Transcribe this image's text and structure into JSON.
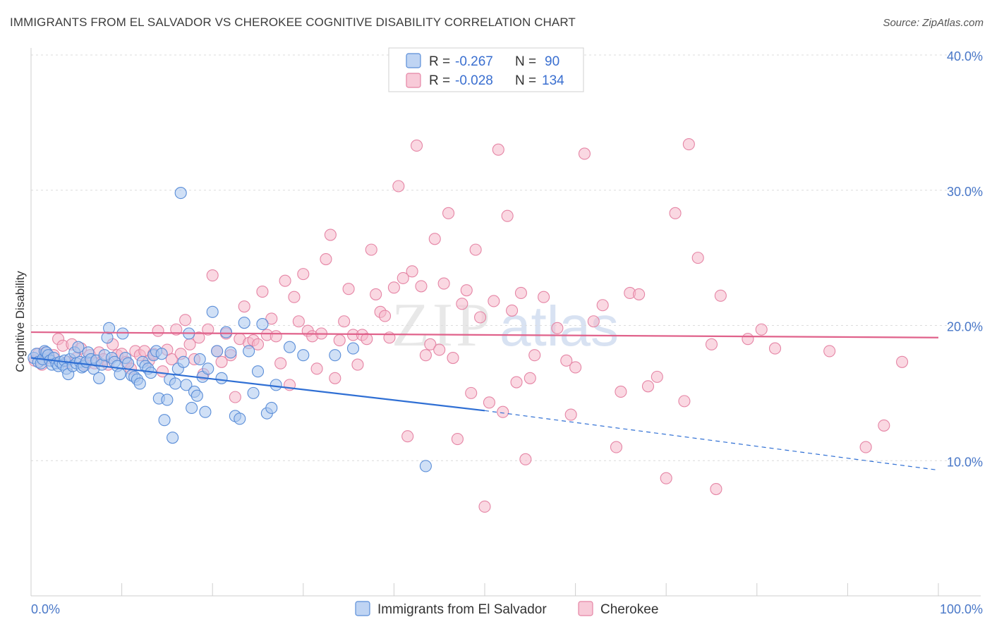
{
  "title": "IMMIGRANTS FROM EL SALVADOR VS CHEROKEE COGNITIVE DISABILITY CORRELATION CHART",
  "source": "Source: ZipAtlas.com",
  "watermark": {
    "zip": "ZIP",
    "atlas": "atlas"
  },
  "colors": {
    "blue_fill": "#a9c6ef",
    "blue_stroke": "#5b8ed8",
    "blue_line": "#2f6fd4",
    "pink_fill": "#f5b8cb",
    "pink_stroke": "#e585a5",
    "pink_line": "#e0628b",
    "tick": "#4a78c8",
    "grid": "#dcdcdc"
  },
  "legend_top": [
    {
      "series": "blue",
      "r_label": "R =",
      "r_value": "-0.267",
      "n_label": "N =",
      "n_value": "90"
    },
    {
      "series": "pink",
      "r_label": "R =",
      "r_value": "-0.028",
      "n_label": "N =",
      "n_value": "134"
    }
  ],
  "legend_bottom": [
    {
      "series": "blue",
      "label": "Immigrants from El Salvador"
    },
    {
      "series": "pink",
      "label": "Cherokee"
    }
  ],
  "chart_data": {
    "type": "scatter",
    "title": "IMMIGRANTS FROM EL SALVADOR VS CHEROKEE COGNITIVE DISABILITY CORRELATION CHART",
    "xlabel": "",
    "ylabel": "Cognitive Disability",
    "xlim": [
      0,
      100
    ],
    "ylim": [
      0,
      40
    ],
    "x_tick_labels": [
      {
        "value": 0,
        "label": "0.0%"
      },
      {
        "value": 100,
        "label": "100.0%"
      }
    ],
    "y_tick_labels": [
      {
        "value": 10,
        "label": "10.0%"
      },
      {
        "value": 20,
        "label": "20.0%"
      },
      {
        "value": 30,
        "label": "30.0%"
      },
      {
        "value": 40,
        "label": "40.0%"
      }
    ],
    "grid": true,
    "legend": "top-center",
    "series": [
      {
        "name": "Immigrants from El Salvador",
        "key": "blue",
        "R": -0.267,
        "N": 90,
        "trend": {
          "solid": [
            [
              0,
              17.6
            ],
            [
              50,
              13.7
            ]
          ],
          "dashed": [
            [
              50,
              13.7
            ],
            [
              100,
              9.3
            ]
          ]
        },
        "points": [
          [
            0.3,
            17.6
          ],
          [
            0.6,
            17.9
          ],
          [
            0.8,
            17.3
          ],
          [
            1.1,
            17.2
          ],
          [
            1.3,
            17.5
          ],
          [
            1.5,
            18.1
          ],
          [
            1.7,
            18.0
          ],
          [
            1.9,
            17.8
          ],
          [
            2.1,
            17.4
          ],
          [
            2.3,
            17.1
          ],
          [
            2.5,
            17.6
          ],
          [
            2.8,
            17.2
          ],
          [
            3.0,
            17.0
          ],
          [
            3.2,
            17.3
          ],
          [
            3.5,
            17.1
          ],
          [
            3.7,
            17.4
          ],
          [
            3.9,
            16.8
          ],
          [
            4.1,
            16.4
          ],
          [
            4.3,
            17.5
          ],
          [
            4.6,
            17.0
          ],
          [
            4.8,
            18.0
          ],
          [
            5.0,
            17.2
          ],
          [
            5.2,
            18.4
          ],
          [
            5.4,
            17.3
          ],
          [
            5.6,
            16.9
          ],
          [
            5.8,
            17.0
          ],
          [
            6.1,
            17.3
          ],
          [
            6.3,
            18.0
          ],
          [
            6.6,
            17.5
          ],
          [
            6.9,
            16.8
          ],
          [
            7.2,
            17.4
          ],
          [
            7.5,
            16.1
          ],
          [
            7.8,
            17.1
          ],
          [
            8.1,
            17.8
          ],
          [
            8.4,
            19.1
          ],
          [
            8.6,
            19.8
          ],
          [
            8.9,
            17.6
          ],
          [
            9.2,
            17.3
          ],
          [
            9.5,
            17.0
          ],
          [
            9.8,
            16.4
          ],
          [
            10.1,
            19.4
          ],
          [
            10.4,
            17.6
          ],
          [
            10.7,
            17.2
          ],
          [
            11.1,
            16.3
          ],
          [
            11.4,
            16.2
          ],
          [
            11.7,
            16.0
          ],
          [
            12.0,
            15.7
          ],
          [
            12.3,
            17.3
          ],
          [
            12.6,
            17.0
          ],
          [
            12.9,
            16.8
          ],
          [
            13.2,
            16.5
          ],
          [
            13.5,
            17.8
          ],
          [
            13.8,
            18.1
          ],
          [
            14.1,
            14.6
          ],
          [
            14.4,
            17.9
          ],
          [
            14.7,
            13.0
          ],
          [
            15.0,
            14.5
          ],
          [
            15.3,
            16.0
          ],
          [
            15.6,
            11.7
          ],
          [
            15.9,
            15.7
          ],
          [
            16.2,
            16.8
          ],
          [
            16.5,
            29.8
          ],
          [
            16.8,
            17.3
          ],
          [
            17.1,
            15.6
          ],
          [
            17.4,
            19.4
          ],
          [
            17.7,
            13.9
          ],
          [
            18.0,
            15.1
          ],
          [
            18.3,
            14.8
          ],
          [
            18.6,
            17.5
          ],
          [
            18.9,
            16.2
          ],
          [
            19.2,
            13.6
          ],
          [
            19.5,
            16.8
          ],
          [
            20.0,
            21.0
          ],
          [
            20.5,
            18.1
          ],
          [
            21.0,
            16.1
          ],
          [
            21.5,
            19.5
          ],
          [
            22.0,
            18.0
          ],
          [
            22.5,
            13.3
          ],
          [
            23.0,
            13.1
          ],
          [
            23.5,
            20.2
          ],
          [
            24.0,
            18.1
          ],
          [
            24.5,
            15.0
          ],
          [
            25.0,
            16.6
          ],
          [
            25.5,
            20.1
          ],
          [
            26.0,
            13.5
          ],
          [
            26.5,
            13.9
          ],
          [
            27.0,
            15.6
          ],
          [
            28.5,
            18.4
          ],
          [
            30.0,
            17.8
          ],
          [
            33.5,
            17.8
          ],
          [
            35.5,
            18.3
          ],
          [
            43.5,
            9.6
          ]
        ]
      },
      {
        "name": "Cherokee",
        "key": "pink",
        "R": -0.028,
        "N": 134,
        "trend": {
          "solid": [
            [
              0,
              19.5
            ],
            [
              100,
              19.1
            ]
          ]
        },
        "points": [
          [
            0.4,
            17.4
          ],
          [
            0.8,
            17.9
          ],
          [
            1.2,
            17.1
          ],
          [
            1.6,
            18.0
          ],
          [
            2.0,
            17.6
          ],
          [
            2.5,
            17.8
          ],
          [
            3.0,
            19.0
          ],
          [
            3.5,
            18.5
          ],
          [
            4.0,
            17.3
          ],
          [
            4.5,
            18.6
          ],
          [
            5.0,
            17.6
          ],
          [
            5.5,
            18.3
          ],
          [
            6.0,
            17.1
          ],
          [
            6.5,
            17.8
          ],
          [
            7.0,
            17.2
          ],
          [
            7.5,
            18.0
          ],
          [
            8.0,
            17.5
          ],
          [
            8.5,
            17.1
          ],
          [
            9.0,
            18.6
          ],
          [
            9.5,
            17.8
          ],
          [
            10.0,
            17.9
          ],
          [
            10.5,
            17.3
          ],
          [
            11.0,
            16.8
          ],
          [
            11.5,
            18.1
          ],
          [
            12.0,
            17.8
          ],
          [
            12.5,
            18.1
          ],
          [
            13.0,
            17.4
          ],
          [
            13.5,
            17.9
          ],
          [
            14.0,
            19.6
          ],
          [
            14.5,
            16.6
          ],
          [
            15.0,
            18.2
          ],
          [
            15.5,
            17.5
          ],
          [
            16.0,
            19.7
          ],
          [
            16.5,
            17.9
          ],
          [
            17.0,
            20.4
          ],
          [
            17.5,
            18.6
          ],
          [
            18.0,
            17.5
          ],
          [
            18.5,
            19.1
          ],
          [
            19.0,
            16.4
          ],
          [
            19.5,
            19.7
          ],
          [
            20.0,
            23.7
          ],
          [
            20.5,
            18.1
          ],
          [
            21.0,
            17.3
          ],
          [
            21.5,
            19.4
          ],
          [
            22.0,
            17.8
          ],
          [
            22.5,
            14.7
          ],
          [
            23.0,
            19.0
          ],
          [
            23.5,
            21.4
          ],
          [
            24.0,
            18.7
          ],
          [
            24.5,
            18.9
          ],
          [
            25.0,
            18.6
          ],
          [
            25.5,
            22.5
          ],
          [
            26.0,
            19.3
          ],
          [
            26.5,
            20.5
          ],
          [
            27.0,
            19.2
          ],
          [
            27.5,
            17.2
          ],
          [
            28.0,
            23.3
          ],
          [
            28.5,
            15.6
          ],
          [
            29.0,
            22.1
          ],
          [
            29.5,
            20.3
          ],
          [
            30.0,
            23.8
          ],
          [
            30.5,
            19.6
          ],
          [
            31.0,
            19.2
          ],
          [
            31.5,
            16.8
          ],
          [
            32.0,
            19.4
          ],
          [
            32.5,
            24.9
          ],
          [
            33.0,
            26.7
          ],
          [
            33.5,
            16.1
          ],
          [
            34.0,
            18.9
          ],
          [
            34.5,
            20.3
          ],
          [
            35.0,
            22.7
          ],
          [
            35.5,
            19.3
          ],
          [
            36.0,
            17.1
          ],
          [
            36.5,
            19.3
          ],
          [
            37.0,
            19.0
          ],
          [
            37.5,
            25.6
          ],
          [
            38.0,
            22.3
          ],
          [
            38.5,
            21.0
          ],
          [
            39.0,
            20.7
          ],
          [
            39.5,
            19.1
          ],
          [
            40.0,
            22.8
          ],
          [
            40.5,
            30.3
          ],
          [
            41.0,
            23.5
          ],
          [
            41.5,
            11.8
          ],
          [
            42.0,
            24.0
          ],
          [
            42.5,
            33.3
          ],
          [
            43.0,
            22.9
          ],
          [
            43.5,
            17.8
          ],
          [
            44.0,
            18.6
          ],
          [
            44.5,
            26.4
          ],
          [
            45.0,
            18.2
          ],
          [
            45.5,
            23.1
          ],
          [
            46.0,
            28.3
          ],
          [
            46.5,
            17.6
          ],
          [
            47.0,
            11.6
          ],
          [
            47.5,
            21.6
          ],
          [
            48.0,
            22.6
          ],
          [
            48.5,
            15.0
          ],
          [
            49.0,
            25.6
          ],
          [
            49.5,
            20.6
          ],
          [
            50.0,
            6.6
          ],
          [
            50.5,
            14.3
          ],
          [
            51.0,
            21.8
          ],
          [
            51.5,
            33.0
          ],
          [
            52.0,
            13.6
          ],
          [
            52.5,
            28.1
          ],
          [
            53.0,
            21.1
          ],
          [
            53.5,
            15.8
          ],
          [
            54.0,
            22.4
          ],
          [
            54.5,
            10.1
          ],
          [
            55.0,
            16.1
          ],
          [
            55.5,
            17.8
          ],
          [
            56.5,
            22.1
          ],
          [
            58.0,
            19.8
          ],
          [
            59.0,
            17.4
          ],
          [
            59.5,
            13.4
          ],
          [
            60.0,
            16.9
          ],
          [
            61.0,
            32.7
          ],
          [
            62.0,
            20.3
          ],
          [
            63.0,
            21.5
          ],
          [
            64.5,
            11.0
          ],
          [
            65.0,
            15.1
          ],
          [
            66.0,
            22.4
          ],
          [
            67.0,
            22.3
          ],
          [
            68.0,
            15.5
          ],
          [
            69.0,
            16.2
          ],
          [
            70.0,
            8.7
          ],
          [
            71.0,
            28.3
          ],
          [
            72.0,
            14.4
          ],
          [
            72.5,
            33.4
          ],
          [
            73.5,
            25.0
          ],
          [
            75.0,
            18.6
          ],
          [
            75.5,
            7.9
          ],
          [
            76.0,
            22.2
          ],
          [
            79.0,
            19.0
          ],
          [
            80.5,
            19.7
          ],
          [
            82.0,
            18.3
          ],
          [
            88.0,
            18.1
          ],
          [
            92.0,
            11.0
          ],
          [
            94.0,
            12.6
          ],
          [
            96.0,
            17.3
          ]
        ]
      }
    ]
  }
}
